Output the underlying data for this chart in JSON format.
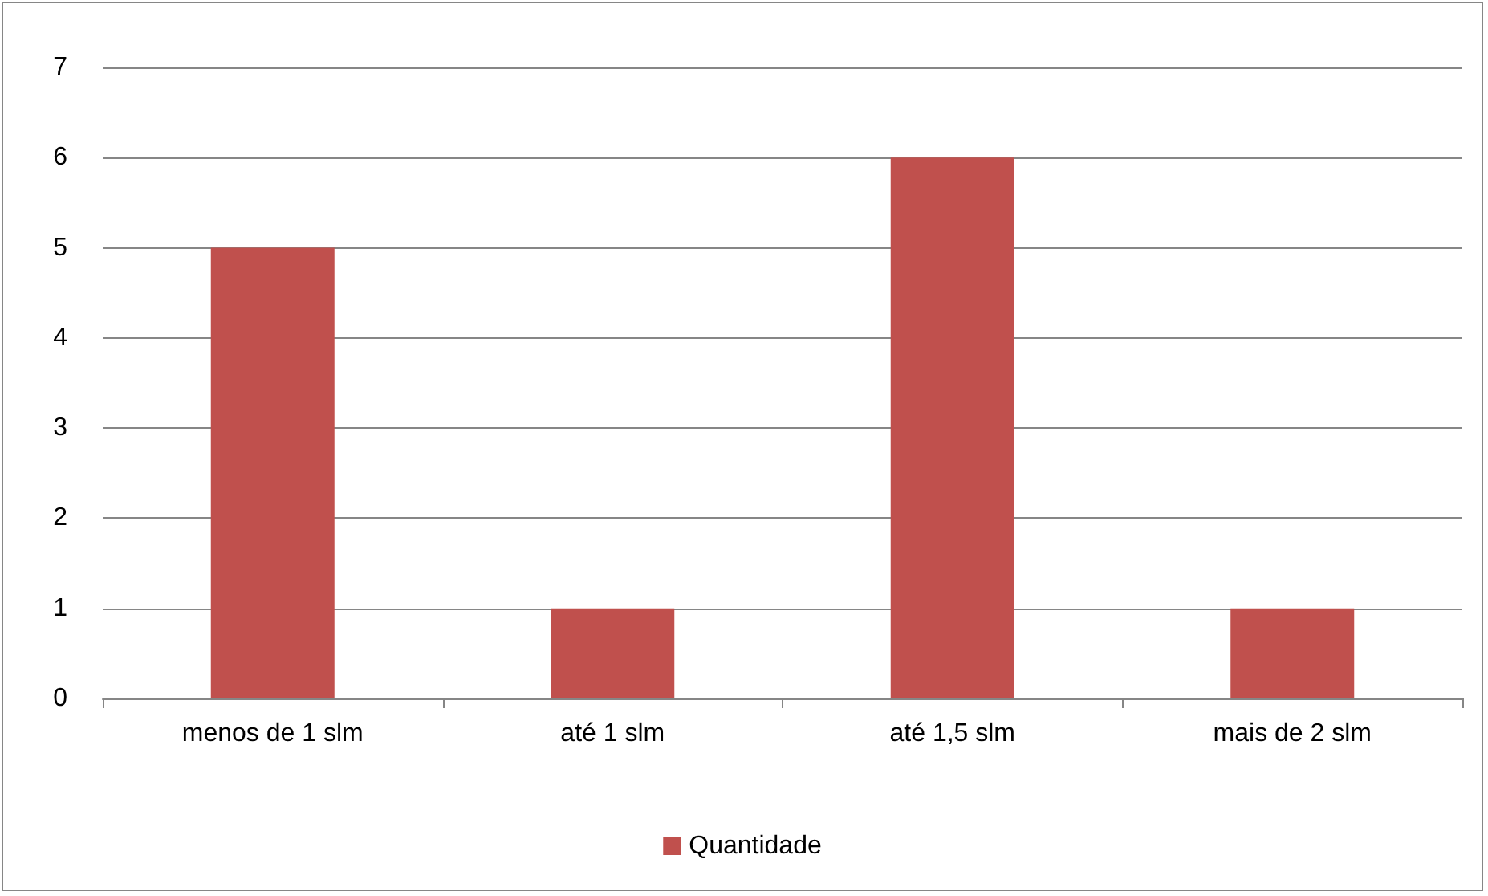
{
  "chart_data": {
    "type": "bar",
    "categories": [
      "menos de 1 slm",
      "até 1 slm",
      "até 1,5 slm",
      "mais de 2 slm"
    ],
    "series": [
      {
        "name": "Quantidade",
        "color": "#c0504d",
        "values": [
          5,
          1,
          6,
          1
        ]
      }
    ],
    "ylim": [
      0,
      7
    ],
    "yticks": [
      0,
      1,
      2,
      3,
      4,
      5,
      6,
      7
    ],
    "grid": "y",
    "legend": "bottom"
  }
}
